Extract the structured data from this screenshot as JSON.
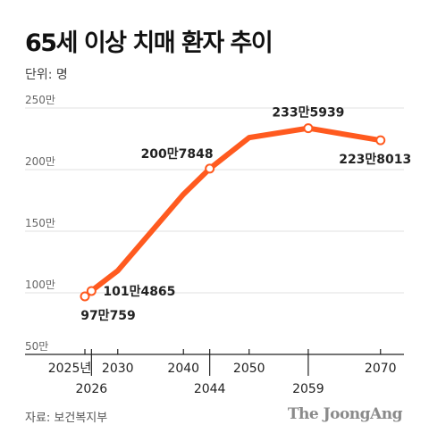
{
  "title": "65세 이상 치매 환자 추이",
  "unit_label": "단위: 명",
  "source": "자료: 보건복지부",
  "brand": "The JoongAng",
  "colors": {
    "line": "#ff5a1f",
    "grid": "#e2e2e2",
    "axis": "#222222",
    "text": "#222222",
    "tick_text": "#666666"
  },
  "chart_data": {
    "type": "line",
    "title": "65세 이상 치매 환자 추이",
    "xlabel": "",
    "ylabel": "단위: 명",
    "y_unit": "만",
    "ylim": [
      50,
      250
    ],
    "y_ticks": [
      50,
      100,
      150,
      200,
      250
    ],
    "y_tick_labels": [
      "50만",
      "100만",
      "150만",
      "200만",
      "250만"
    ],
    "grid": true,
    "x_ticks_row1": [
      {
        "year": 2025,
        "label": "2025년"
      },
      {
        "year": 2030,
        "label": "2030"
      },
      {
        "year": 2040,
        "label": "2040"
      },
      {
        "year": 2050,
        "label": "2050"
      },
      {
        "year": 2070,
        "label": "2070"
      }
    ],
    "x_ticks_row2": [
      {
        "year": 2026,
        "label": "2026"
      },
      {
        "year": 2044,
        "label": "2044"
      },
      {
        "year": 2059,
        "label": "2059"
      }
    ],
    "series": [
      {
        "points": [
          {
            "year": 2025,
            "value": 97.0759
          },
          {
            "year": 2026,
            "value": 101.4865
          },
          {
            "year": 2030,
            "value": 118
          },
          {
            "year": 2040,
            "value": 180
          },
          {
            "year": 2044,
            "value": 200.7848
          },
          {
            "year": 2050,
            "value": 226
          },
          {
            "year": 2059,
            "value": 233.5939
          },
          {
            "year": 2070,
            "value": 223.8013
          }
        ]
      }
    ],
    "markers": [
      {
        "year": 2025,
        "value": 97.0759,
        "label": "97만759",
        "pos": "below"
      },
      {
        "year": 2026,
        "value": 101.4865,
        "label": "101만4865",
        "pos": "right"
      },
      {
        "year": 2044,
        "value": 200.7848,
        "label": "200만7848",
        "pos": "above-left"
      },
      {
        "year": 2059,
        "value": 233.5939,
        "label": "233만5939",
        "pos": "above"
      },
      {
        "year": 2070,
        "value": 223.8013,
        "label": "223만8013",
        "pos": "below"
      }
    ]
  }
}
